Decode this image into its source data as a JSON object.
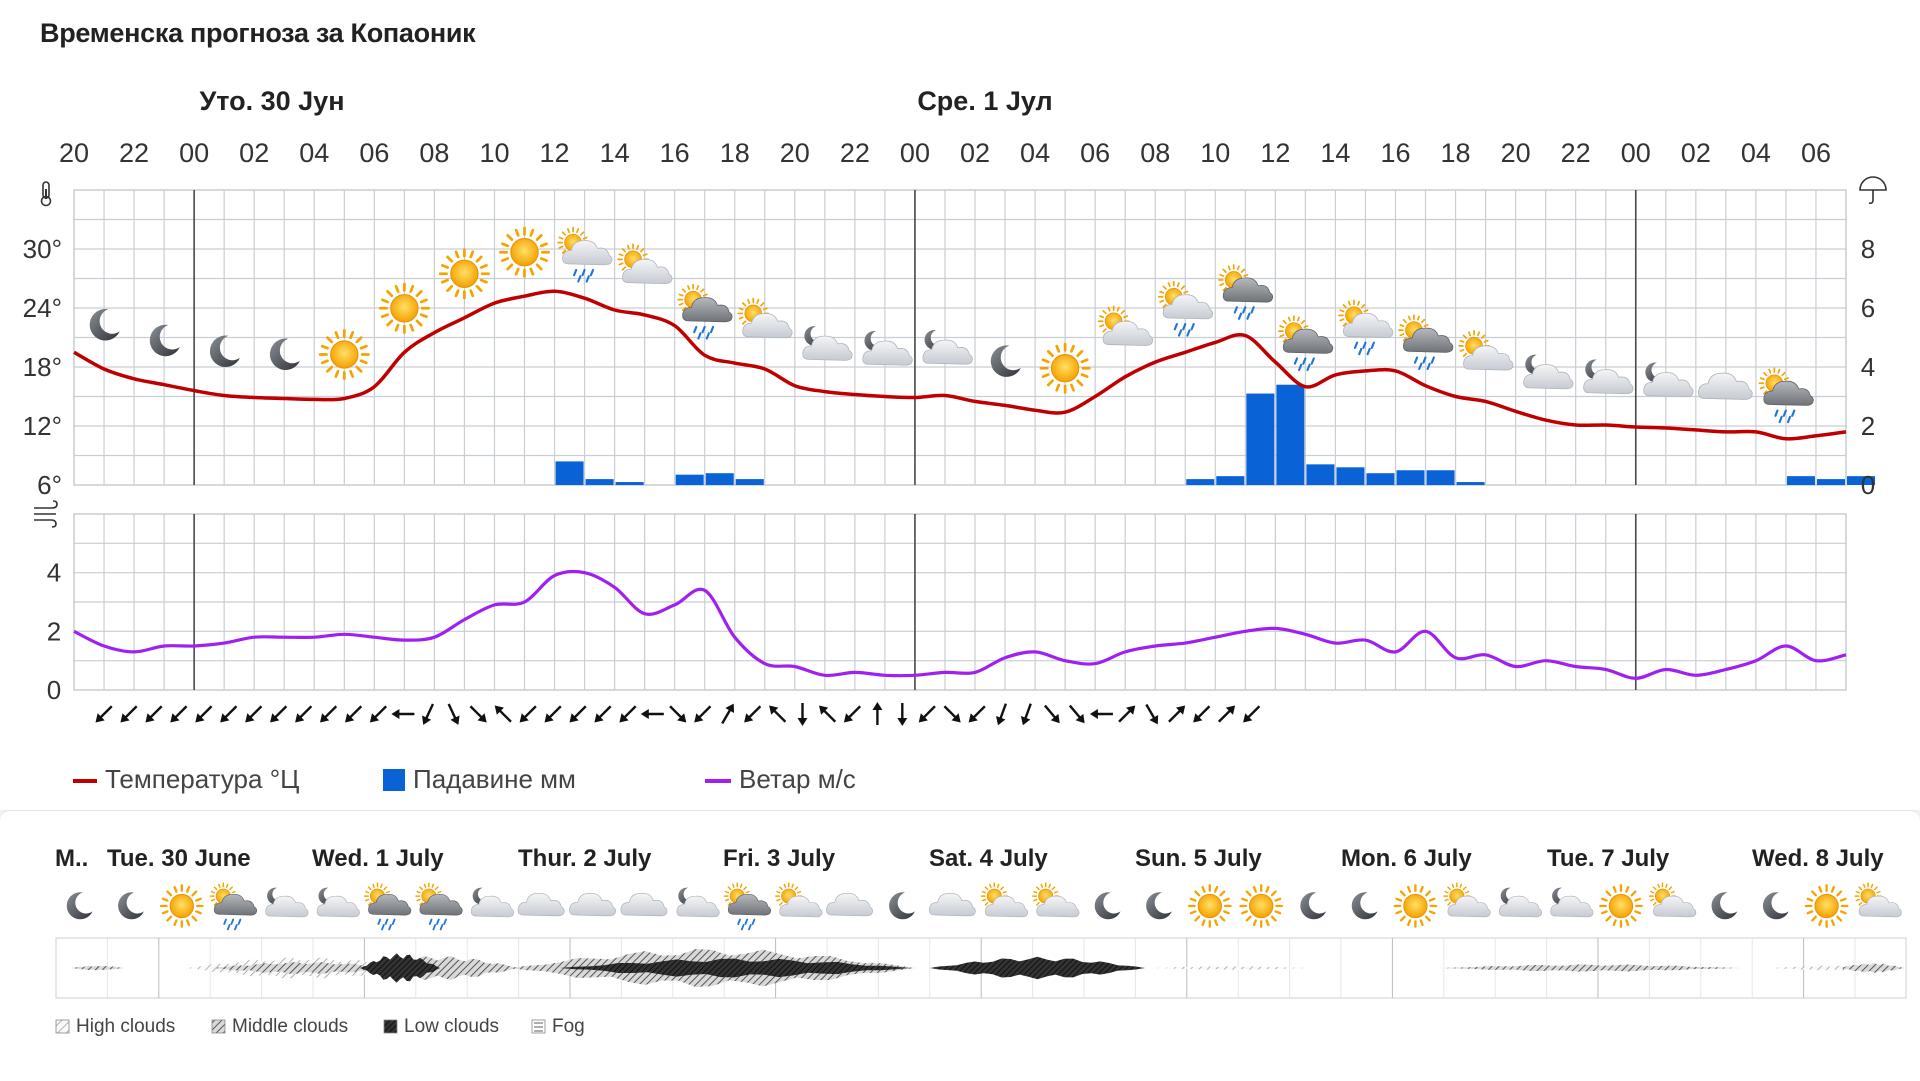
{
  "page": {
    "title": "Временска прогноза за Копаоник"
  },
  "top_days": [
    "Уто. 30 Јун",
    "Сре. 1 Јул"
  ],
  "hour_labels": [
    "20",
    "22",
    "00",
    "02",
    "04",
    "06",
    "08",
    "10",
    "12",
    "14",
    "16",
    "18",
    "20",
    "22",
    "00",
    "02",
    "04",
    "06",
    "08",
    "10",
    "12",
    "14",
    "16",
    "18",
    "20",
    "22",
    "00",
    "02",
    "04",
    "06"
  ],
  "temp_ticks": [
    "6°",
    "12°",
    "18°",
    "24°",
    "30°"
  ],
  "precip_ticks": [
    "0",
    "2",
    "4",
    "6",
    "8"
  ],
  "wind_ticks": [
    "0",
    "2",
    "4"
  ],
  "legend": {
    "temperature": "Температура °Ц",
    "precipitation": "Падавине мм",
    "wind": "Ветар м/с"
  },
  "colors": {
    "temperature": "#c00000",
    "precipitation": "#0a63d6",
    "wind": "#a020f0",
    "grid": "#c9ced4",
    "day_line": "#4a4a4a"
  },
  "chart_data": {
    "type": "line",
    "x_hours": [
      20,
      21,
      22,
      23,
      0,
      1,
      2,
      3,
      4,
      5,
      6,
      7,
      8,
      9,
      10,
      11,
      12,
      13,
      14,
      15,
      16,
      17,
      18,
      19,
      20,
      21,
      22,
      23,
      0,
      1,
      2,
      3,
      4,
      5,
      6,
      7,
      8,
      9,
      10,
      11,
      12,
      13,
      14,
      15,
      16,
      17,
      18,
      19,
      20,
      21,
      22,
      23,
      0,
      1,
      2,
      3,
      4,
      5,
      6,
      7
    ],
    "temperature_c": [
      19.5,
      17.8,
      16.8,
      16.2,
      15.6,
      15.1,
      14.9,
      14.8,
      14.7,
      14.8,
      16,
      19.5,
      21.5,
      23,
      24.5,
      25.2,
      25.7,
      25,
      23.8,
      23.3,
      22.2,
      19.2,
      18.4,
      17.8,
      16.1,
      15.5,
      15.2,
      15,
      14.9,
      15.1,
      14.5,
      14.1,
      13.6,
      13.4,
      15,
      17,
      18.5,
      19.5,
      20.5,
      21.2,
      18.5,
      16,
      17.2,
      17.6,
      17.6,
      16.1,
      15,
      14.5,
      13.5,
      12.6,
      12.1,
      12.1,
      11.9,
      11.8,
      11.6,
      11.4,
      11.4,
      10.7,
      11,
      11.4
    ],
    "precipitation_mm": [
      0,
      0,
      0,
      0,
      0,
      0,
      0,
      0,
      0,
      0,
      0,
      0,
      0,
      0,
      0,
      0,
      0.8,
      0.2,
      0.1,
      0,
      0.35,
      0.4,
      0.2,
      0,
      0,
      0,
      0,
      0,
      0,
      0,
      0,
      0,
      0,
      0,
      0,
      0,
      0,
      0.2,
      0.3,
      3.1,
      3.4,
      0.7,
      0.6,
      0.4,
      0.5,
      0.5,
      0.1,
      0,
      0,
      0,
      0,
      0,
      0,
      0,
      0,
      0,
      0,
      0.3,
      0.2,
      0.3
    ],
    "wind_ms": [
      2,
      1.5,
      1.3,
      1.5,
      1.5,
      1.6,
      1.8,
      1.8,
      1.8,
      1.9,
      1.8,
      1.7,
      1.8,
      2.4,
      2.9,
      3,
      3.9,
      4,
      3.5,
      2.6,
      2.9,
      3.4,
      1.8,
      0.9,
      0.8,
      0.5,
      0.6,
      0.5,
      0.5,
      0.6,
      0.6,
      1.1,
      1.3,
      1.0,
      0.9,
      1.3,
      1.5,
      1.6,
      1.8,
      2,
      2.1,
      1.9,
      1.6,
      1.7,
      1.3,
      2,
      1.1,
      1.2,
      0.8,
      1.0,
      0.8,
      0.7,
      0.4,
      0.7,
      0.5,
      0.7,
      1.0,
      1.5,
      1.0,
      1.2
    ],
    "temp_range": [
      6,
      36
    ],
    "precip_range": [
      0,
      10
    ],
    "wind_range": [
      0,
      6
    ],
    "wind_dir": [
      45,
      45,
      45,
      45,
      45,
      45,
      45,
      45,
      45,
      45,
      45,
      45,
      90,
      25,
      335,
      315,
      135,
      45,
      45,
      45,
      45,
      45,
      90,
      315,
      45,
      210,
      45,
      135,
      0,
      135,
      45,
      180,
      0,
      45,
      315,
      45,
      20,
      20,
      320,
      320,
      90,
      225,
      330,
      225,
      45,
      225,
      45
    ],
    "grid": true
  },
  "weather_icons": [
    "moon",
    "moon",
    "moon",
    "moon",
    "sun",
    "sun",
    "sun",
    "sun",
    "sun-cloud-rain",
    "sun-cloud",
    "cloud-rain",
    "sun-cloud",
    "moon-cloud",
    "moon-cloud",
    "moon-cloud",
    "moon",
    "sun",
    "sun-cloud",
    "sun-cloud-rain",
    "cloud-rain",
    "cloud-rain",
    "sun-cloud-rain",
    "cloud-rain",
    "sun-cloud",
    "moon-cloud",
    "moon-cloud",
    "moon-cloud",
    "cloud",
    "cloud-rain"
  ],
  "bottom": {
    "days": [
      "M..",
      "Tue. 30 June",
      "Wed. 1 July",
      "Thur. 2 July",
      "Fri. 3 July",
      "Sat. 4 July",
      "Sun. 5 July",
      "Mon. 6 July",
      "Tue. 7 July",
      "Wed. 8 July"
    ],
    "icons": [
      "moon",
      "moon",
      "sun",
      "cloud-rain",
      "moon-cloud",
      "moon-cloud",
      "cloud-rain",
      "cloud-rain",
      "moon-cloud",
      "cloud",
      "cloud",
      "cloud",
      "moon-cloud",
      "cloud-rain",
      "sun-cloud",
      "cloud",
      "moon",
      "cloud",
      "sun-cloud",
      "sun-cloud",
      "moon",
      "moon",
      "sun",
      "sun",
      "moon",
      "moon",
      "sun",
      "sun-cloud",
      "moon-cloud",
      "moon-cloud",
      "sun",
      "sun-cloud",
      "moon",
      "moon",
      "sun",
      "sun-cloud"
    ],
    "legend": [
      "High clouds",
      "Middle clouds",
      "Low clouds",
      "Fog"
    ]
  }
}
